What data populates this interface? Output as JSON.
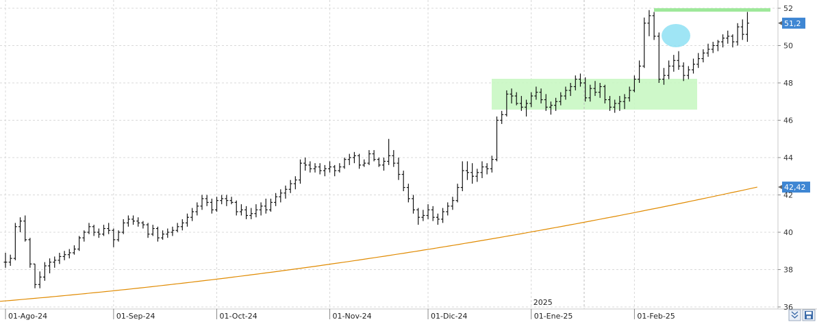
{
  "chart_data": {
    "type": "ohlc",
    "ylim": [
      36,
      52
    ],
    "y_ticks": [
      "36",
      "38",
      "40",
      "42",
      "44",
      "46",
      "48",
      "50",
      "52"
    ],
    "x_ticks": [
      {
        "label": "01-Ago-24",
        "i": 0
      },
      {
        "label": "01-Sep-24",
        "i": 22
      },
      {
        "label": "01-Oct-24",
        "i": 43
      },
      {
        "label": "01-Nov-24",
        "i": 66
      },
      {
        "label": "01-Dic-24",
        "i": 86
      },
      {
        "label": "01-Ene-25",
        "i": 107
      },
      {
        "label": "01-Feb-25",
        "i": 128
      }
    ],
    "year_marker": {
      "label": "2025",
      "i": 107
    },
    "grid": true,
    "price_labels": [
      {
        "text": "51,2",
        "value": 51.2
      },
      {
        "text": "42,42",
        "value": 42.42
      }
    ],
    "moving_average": {
      "color": "#e08a00",
      "start_value": 36.3,
      "end_value": 42.42
    },
    "ohlc": [
      [
        38.4,
        38.9,
        38.1,
        38.4
      ],
      [
        38.4,
        38.8,
        38.2,
        38.6
      ],
      [
        38.6,
        40.5,
        38.5,
        40.3
      ],
      [
        40.3,
        40.8,
        40.0,
        40.6
      ],
      [
        40.6,
        40.9,
        39.5,
        39.6
      ],
      [
        39.6,
        39.7,
        38.1,
        38.3
      ],
      [
        38.3,
        38.3,
        37.0,
        37.2
      ],
      [
        37.2,
        37.9,
        37.0,
        37.6
      ],
      [
        37.6,
        38.4,
        37.4,
        38.2
      ],
      [
        38.2,
        38.6,
        37.8,
        38.4
      ],
      [
        38.4,
        38.7,
        38.1,
        38.5
      ],
      [
        38.5,
        38.9,
        38.3,
        38.7
      ],
      [
        38.7,
        39.0,
        38.5,
        38.8
      ],
      [
        38.8,
        39.1,
        38.6,
        38.9
      ],
      [
        38.9,
        39.3,
        38.8,
        39.1
      ],
      [
        39.1,
        39.8,
        39.0,
        39.7
      ],
      [
        39.7,
        40.1,
        39.5,
        40.0
      ],
      [
        40.0,
        40.5,
        39.9,
        40.3
      ],
      [
        40.3,
        40.4,
        39.8,
        40.0
      ],
      [
        40.0,
        40.2,
        39.7,
        39.9
      ],
      [
        39.9,
        40.4,
        39.8,
        40.2
      ],
      [
        40.2,
        40.5,
        39.9,
        40.1
      ],
      [
        40.1,
        40.2,
        39.2,
        39.6
      ],
      [
        39.6,
        40.1,
        39.5,
        40.0
      ],
      [
        40.0,
        40.7,
        39.9,
        40.5
      ],
      [
        40.5,
        40.9,
        40.3,
        40.7
      ],
      [
        40.7,
        40.9,
        40.4,
        40.6
      ],
      [
        40.6,
        40.8,
        40.3,
        40.5
      ],
      [
        40.5,
        40.6,
        40.2,
        40.4
      ],
      [
        40.4,
        40.5,
        39.7,
        39.9
      ],
      [
        39.9,
        40.4,
        39.8,
        40.2
      ],
      [
        40.2,
        40.3,
        39.5,
        39.7
      ],
      [
        39.7,
        40.1,
        39.6,
        39.9
      ],
      [
        39.9,
        40.2,
        39.7,
        40.0
      ],
      [
        40.0,
        40.3,
        39.8,
        40.1
      ],
      [
        40.1,
        40.5,
        40.0,
        40.3
      ],
      [
        40.3,
        40.7,
        40.1,
        40.5
      ],
      [
        40.5,
        41.0,
        40.3,
        40.8
      ],
      [
        40.8,
        41.3,
        40.6,
        41.1
      ],
      [
        41.1,
        41.6,
        40.9,
        41.4
      ],
      [
        41.4,
        42.0,
        41.2,
        41.8
      ],
      [
        41.8,
        42.0,
        41.4,
        41.6
      ],
      [
        41.6,
        41.8,
        41.0,
        41.2
      ],
      [
        41.2,
        41.9,
        41.1,
        41.7
      ],
      [
        41.7,
        42.0,
        41.5,
        41.8
      ],
      [
        41.8,
        42.0,
        41.4,
        41.7
      ],
      [
        41.7,
        41.9,
        41.5,
        41.6
      ],
      [
        41.6,
        41.7,
        40.9,
        41.1
      ],
      [
        41.1,
        41.5,
        40.9,
        41.2
      ],
      [
        41.2,
        41.4,
        40.7,
        40.9
      ],
      [
        40.9,
        41.3,
        40.7,
        41.0
      ],
      [
        41.0,
        41.5,
        40.8,
        41.2
      ],
      [
        41.2,
        41.6,
        40.9,
        41.4
      ],
      [
        41.4,
        41.8,
        41.0,
        41.2
      ],
      [
        41.2,
        41.8,
        41.1,
        41.6
      ],
      [
        41.6,
        42.1,
        41.4,
        41.9
      ],
      [
        41.9,
        42.3,
        41.6,
        42.1
      ],
      [
        42.1,
        42.5,
        41.8,
        42.3
      ],
      [
        42.3,
        42.8,
        42.1,
        42.6
      ],
      [
        42.6,
        43.0,
        42.3,
        42.8
      ],
      [
        42.8,
        43.9,
        42.6,
        43.7
      ],
      [
        43.7,
        44.0,
        43.3,
        43.6
      ],
      [
        43.6,
        43.8,
        43.2,
        43.4
      ],
      [
        43.4,
        43.7,
        43.2,
        43.5
      ],
      [
        43.5,
        43.7,
        43.1,
        43.3
      ],
      [
        43.3,
        43.6,
        43.0,
        43.4
      ],
      [
        43.4,
        43.8,
        43.2,
        43.5
      ],
      [
        43.5,
        43.6,
        43.0,
        43.3
      ],
      [
        43.3,
        43.7,
        43.2,
        43.5
      ],
      [
        43.5,
        44.0,
        43.4,
        43.9
      ],
      [
        43.9,
        44.2,
        43.6,
        44.0
      ],
      [
        44.0,
        44.3,
        43.7,
        44.1
      ],
      [
        44.1,
        44.2,
        43.4,
        43.6
      ],
      [
        43.6,
        43.9,
        43.5,
        43.7
      ],
      [
        43.7,
        44.4,
        43.6,
        44.2
      ],
      [
        44.2,
        44.4,
        43.8,
        43.9
      ],
      [
        43.9,
        44.0,
        43.5,
        43.6
      ],
      [
        43.6,
        44.0,
        43.3,
        43.8
      ],
      [
        43.8,
        45.0,
        43.6,
        44.1
      ],
      [
        44.1,
        44.4,
        43.5,
        43.7
      ],
      [
        43.7,
        44.0,
        42.8,
        43.1
      ],
      [
        43.1,
        43.3,
        42.2,
        42.4
      ],
      [
        42.4,
        42.6,
        41.6,
        41.8
      ],
      [
        41.8,
        42.0,
        41.0,
        41.2
      ],
      [
        41.2,
        41.3,
        40.4,
        40.8
      ],
      [
        40.8,
        41.2,
        40.6,
        40.9
      ],
      [
        40.9,
        41.5,
        40.7,
        41.2
      ],
      [
        41.2,
        41.4,
        40.6,
        40.8
      ],
      [
        40.8,
        41.0,
        40.4,
        40.7
      ],
      [
        40.7,
        41.3,
        40.5,
        41.1
      ],
      [
        41.1,
        41.6,
        40.9,
        41.4
      ],
      [
        41.4,
        41.9,
        41.2,
        41.7
      ],
      [
        41.7,
        42.6,
        41.6,
        42.4
      ],
      [
        42.4,
        43.8,
        42.2,
        43.3
      ],
      [
        43.3,
        43.8,
        42.8,
        43.2
      ],
      [
        43.2,
        43.7,
        42.6,
        43.0
      ],
      [
        43.0,
        43.4,
        42.7,
        43.2
      ],
      [
        43.2,
        43.8,
        42.9,
        43.5
      ],
      [
        43.5,
        43.7,
        43.1,
        43.4
      ],
      [
        43.4,
        44.1,
        43.2,
        43.9
      ],
      [
        43.9,
        46.2,
        43.8,
        46.0
      ],
      [
        46.0,
        46.5,
        45.8,
        46.3
      ],
      [
        46.3,
        47.6,
        46.2,
        47.4
      ],
      [
        47.4,
        47.7,
        46.9,
        47.3
      ],
      [
        47.3,
        47.5,
        46.8,
        46.9
      ],
      [
        46.9,
        47.3,
        46.5,
        46.7
      ],
      [
        46.7,
        47.1,
        46.2,
        46.9
      ],
      [
        46.9,
        47.5,
        46.7,
        47.3
      ],
      [
        47.3,
        47.8,
        47.1,
        47.5
      ],
      [
        47.5,
        47.7,
        46.9,
        47.1
      ],
      [
        47.1,
        47.4,
        46.5,
        46.7
      ],
      [
        46.7,
        47.0,
        46.3,
        46.8
      ],
      [
        46.8,
        47.2,
        46.5,
        47.0
      ],
      [
        47.0,
        47.5,
        46.8,
        47.3
      ],
      [
        47.3,
        47.8,
        47.1,
        47.6
      ],
      [
        47.6,
        48.0,
        47.3,
        47.8
      ],
      [
        47.8,
        48.4,
        47.6,
        48.2
      ],
      [
        48.2,
        48.5,
        47.8,
        48.0
      ],
      [
        48.0,
        48.3,
        47.0,
        47.2
      ],
      [
        47.2,
        47.9,
        47.0,
        47.7
      ],
      [
        47.7,
        48.1,
        47.3,
        47.5
      ],
      [
        47.5,
        48.0,
        47.2,
        47.8
      ],
      [
        47.8,
        47.9,
        46.9,
        47.1
      ],
      [
        47.1,
        47.3,
        46.5,
        46.7
      ],
      [
        46.7,
        47.1,
        46.4,
        46.9
      ],
      [
        46.9,
        47.3,
        46.5,
        47.0
      ],
      [
        47.0,
        47.4,
        46.6,
        47.2
      ],
      [
        47.2,
        47.8,
        47.0,
        47.6
      ],
      [
        47.6,
        48.4,
        47.5,
        48.2
      ],
      [
        48.2,
        49.2,
        48.0,
        48.9
      ],
      [
        48.9,
        51.5,
        48.8,
        51.2
      ],
      [
        51.2,
        51.9,
        50.5,
        51.6
      ],
      [
        51.6,
        51.8,
        50.3,
        50.5
      ],
      [
        50.5,
        50.7,
        48.0,
        48.2
      ],
      [
        48.2,
        48.8,
        47.9,
        48.4
      ],
      [
        48.4,
        49.2,
        48.2,
        48.9
      ],
      [
        48.9,
        49.5,
        48.6,
        49.2
      ],
      [
        49.2,
        49.7,
        48.7,
        48.9
      ],
      [
        48.9,
        49.1,
        48.1,
        48.4
      ],
      [
        48.4,
        48.9,
        48.2,
        48.7
      ],
      [
        48.7,
        49.3,
        48.5,
        49.0
      ],
      [
        49.0,
        49.6,
        48.8,
        49.3
      ],
      [
        49.3,
        49.8,
        49.1,
        49.6
      ],
      [
        49.6,
        50.1,
        49.4,
        49.8
      ],
      [
        49.8,
        50.2,
        49.6,
        50.0
      ],
      [
        50.0,
        50.3,
        49.7,
        50.2
      ],
      [
        50.2,
        50.6,
        49.9,
        50.4
      ],
      [
        50.4,
        50.8,
        50.1,
        50.5
      ],
      [
        50.5,
        50.6,
        49.9,
        50.2
      ],
      [
        50.2,
        51.2,
        50.0,
        51.0
      ],
      [
        51.0,
        51.4,
        50.3,
        50.6
      ],
      [
        50.6,
        51.8,
        50.2,
        51.2
      ]
    ]
  },
  "buttons": {
    "scroll_down_icon": "chevrons-down-icon",
    "save_icon": "save-icon"
  }
}
